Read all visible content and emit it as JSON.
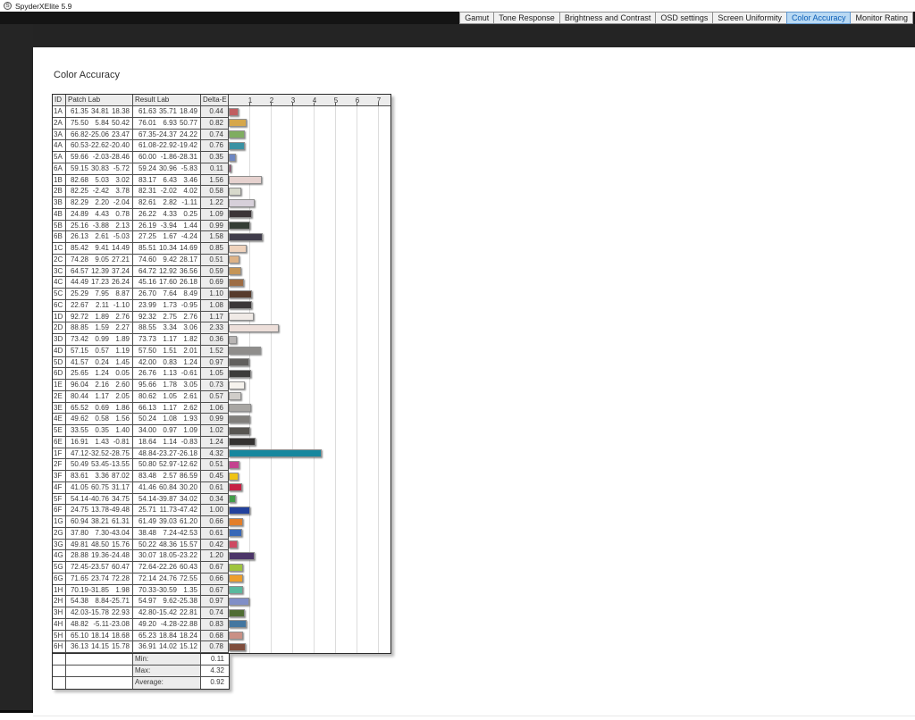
{
  "window": {
    "title": "SpyderXElite 5.9"
  },
  "tabs": {
    "items": [
      {
        "label": "Gamut",
        "active": false
      },
      {
        "label": "Tone Response",
        "active": false
      },
      {
        "label": "Brightness and Contrast",
        "active": false
      },
      {
        "label": "OSD settings",
        "active": false
      },
      {
        "label": "Screen Uniformity",
        "active": false
      },
      {
        "label": "Color Accuracy",
        "active": true
      },
      {
        "label": "Monitor Rating",
        "active": false
      }
    ]
  },
  "page": {
    "title": "Color Accuracy"
  },
  "table": {
    "headers": {
      "id": "ID",
      "patch": "Patch Lab",
      "result": "Result Lab",
      "delta": "Delta-E"
    },
    "rows": [
      {
        "id": "1A",
        "patch": [
          "61.35",
          "34.81",
          "18.38"
        ],
        "result": [
          "61.63",
          "35.71",
          "18.49"
        ],
        "delta": "0.44",
        "color": "#c05d60"
      },
      {
        "id": "2A",
        "patch": [
          "75.50",
          "5.84",
          "50.42"
        ],
        "result": [
          "76.01",
          "6.93",
          "50.77"
        ],
        "delta": "0.82",
        "color": "#d6a74b"
      },
      {
        "id": "3A",
        "patch": [
          "66.82",
          "-25.06",
          "23.47"
        ],
        "result": [
          "67.35",
          "-24.37",
          "24.22"
        ],
        "delta": "0.74",
        "color": "#7fad60"
      },
      {
        "id": "4A",
        "patch": [
          "60.53",
          "-22.62",
          "-20.40"
        ],
        "result": [
          "61.08",
          "-22.92",
          "-19.42"
        ],
        "delta": "0.76",
        "color": "#3a92a3"
      },
      {
        "id": "5A",
        "patch": [
          "59.66",
          "-2.03",
          "-28.46"
        ],
        "result": [
          "60.00",
          "-1.86",
          "-28.31"
        ],
        "delta": "0.35",
        "color": "#6d86c2"
      },
      {
        "id": "6A",
        "patch": [
          "59.15",
          "30.83",
          "-5.72"
        ],
        "result": [
          "59.24",
          "30.96",
          "-5.83"
        ],
        "delta": "0.11",
        "color": "#8d3e66"
      },
      {
        "id": "1B",
        "patch": [
          "82.68",
          "5.03",
          "3.02"
        ],
        "result": [
          "83.17",
          "6.43",
          "3.46"
        ],
        "delta": "1.56",
        "color": "#e6d2cf"
      },
      {
        "id": "2B",
        "patch": [
          "82.25",
          "-2.42",
          "3.78"
        ],
        "result": [
          "82.31",
          "-2.02",
          "4.02"
        ],
        "delta": "0.58",
        "color": "#d7d9cb"
      },
      {
        "id": "3B",
        "patch": [
          "82.29",
          "2.20",
          "-2.04"
        ],
        "result": [
          "82.61",
          "2.82",
          "-1.11"
        ],
        "delta": "1.22",
        "color": "#d7d0da"
      },
      {
        "id": "4B",
        "patch": [
          "24.89",
          "4.43",
          "0.78"
        ],
        "result": [
          "26.22",
          "4.33",
          "0.25"
        ],
        "delta": "1.09",
        "color": "#3b3437"
      },
      {
        "id": "5B",
        "patch": [
          "25.16",
          "-3.88",
          "2.13"
        ],
        "result": [
          "26.19",
          "-3.94",
          "1.44"
        ],
        "delta": "0.99",
        "color": "#353e36"
      },
      {
        "id": "6B",
        "patch": [
          "26.13",
          "2.61",
          "-5.03"
        ],
        "result": [
          "27.25",
          "1.67",
          "-4.24"
        ],
        "delta": "1.58",
        "color": "#403d4b"
      },
      {
        "id": "1C",
        "patch": [
          "85.42",
          "9.41",
          "14.49"
        ],
        "result": [
          "85.51",
          "10.34",
          "14.69"
        ],
        "delta": "0.85",
        "color": "#efd3bd"
      },
      {
        "id": "2C",
        "patch": [
          "74.28",
          "9.05",
          "27.21"
        ],
        "result": [
          "74.60",
          "9.42",
          "28.17"
        ],
        "delta": "0.51",
        "color": "#ddb286"
      },
      {
        "id": "3C",
        "patch": [
          "64.57",
          "12.39",
          "37.24"
        ],
        "result": [
          "64.72",
          "12.92",
          "36.56"
        ],
        "delta": "0.59",
        "color": "#c59556"
      },
      {
        "id": "4C",
        "patch": [
          "44.49",
          "17.23",
          "26.24"
        ],
        "result": [
          "45.16",
          "17.60",
          "26.18"
        ],
        "delta": "0.69",
        "color": "#9d6c43"
      },
      {
        "id": "5C",
        "patch": [
          "25.29",
          "7.95",
          "8.87"
        ],
        "result": [
          "26.70",
          "7.64",
          "8.49"
        ],
        "delta": "1.10",
        "color": "#563b2c"
      },
      {
        "id": "6C",
        "patch": [
          "22.67",
          "2.11",
          "-1.10"
        ],
        "result": [
          "23.99",
          "1.73",
          "-0.95"
        ],
        "delta": "1.08",
        "color": "#3b3738"
      },
      {
        "id": "1D",
        "patch": [
          "92.72",
          "1.89",
          "2.76"
        ],
        "result": [
          "92.32",
          "2.75",
          "2.76"
        ],
        "delta": "1.17",
        "color": "#f0eae6"
      },
      {
        "id": "2D",
        "patch": [
          "88.85",
          "1.59",
          "2.27"
        ],
        "result": [
          "88.55",
          "3.34",
          "3.06"
        ],
        "delta": "2.33",
        "color": "#eddfda"
      },
      {
        "id": "3D",
        "patch": [
          "73.42",
          "0.99",
          "1.89"
        ],
        "result": [
          "73.73",
          "1.17",
          "1.82"
        ],
        "delta": "0.36",
        "color": "#b8b5b4"
      },
      {
        "id": "4D",
        "patch": [
          "57.15",
          "0.57",
          "1.19"
        ],
        "result": [
          "57.50",
          "1.51",
          "2.01"
        ],
        "delta": "1.52",
        "color": "#8f8d8b"
      },
      {
        "id": "5D",
        "patch": [
          "41.57",
          "0.24",
          "1.45"
        ],
        "result": [
          "42.00",
          "0.83",
          "1.24"
        ],
        "delta": "0.97",
        "color": "#615f5d"
      },
      {
        "id": "6D",
        "patch": [
          "25.65",
          "1.24",
          "0.05"
        ],
        "result": [
          "26.76",
          "1.13",
          "-0.61"
        ],
        "delta": "1.05",
        "color": "#3d3c3b"
      },
      {
        "id": "1E",
        "patch": [
          "96.04",
          "2.16",
          "2.60"
        ],
        "result": [
          "95.66",
          "1.78",
          "3.05"
        ],
        "delta": "0.73",
        "color": "#f6f3ee"
      },
      {
        "id": "2E",
        "patch": [
          "80.44",
          "1.17",
          "2.05"
        ],
        "result": [
          "80.62",
          "1.05",
          "2.61"
        ],
        "delta": "0.57",
        "color": "#d0cdc9"
      },
      {
        "id": "3E",
        "patch": [
          "65.52",
          "0.69",
          "1.86"
        ],
        "result": [
          "66.13",
          "1.17",
          "2.62"
        ],
        "delta": "1.06",
        "color": "#a8a6a3"
      },
      {
        "id": "4E",
        "patch": [
          "49.62",
          "0.58",
          "1.56"
        ],
        "result": [
          "50.24",
          "1.08",
          "1.93"
        ],
        "delta": "0.99",
        "color": "#817f7c"
      },
      {
        "id": "5E",
        "patch": [
          "33.55",
          "0.35",
          "1.40"
        ],
        "result": [
          "34.00",
          "0.97",
          "1.09"
        ],
        "delta": "1.02",
        "color": "#575551"
      },
      {
        "id": "6E",
        "patch": [
          "16.91",
          "1.43",
          "-0.81"
        ],
        "result": [
          "18.64",
          "1.14",
          "-0.83"
        ],
        "delta": "1.24",
        "color": "#343231"
      },
      {
        "id": "1F",
        "patch": [
          "47.12",
          "-32.52",
          "-28.75"
        ],
        "result": [
          "48.84",
          "-23.27",
          "-26.18"
        ],
        "delta": "4.32",
        "color": "#16879e"
      },
      {
        "id": "2F",
        "patch": [
          "50.49",
          "53.45",
          "-13.55"
        ],
        "result": [
          "50.80",
          "52.97",
          "-12.62"
        ],
        "delta": "0.51",
        "color": "#c3428f"
      },
      {
        "id": "3F",
        "patch": [
          "83.61",
          "3.36",
          "87.02"
        ],
        "result": [
          "83.48",
          "2.57",
          "86.59"
        ],
        "delta": "0.45",
        "color": "#efc314"
      },
      {
        "id": "4F",
        "patch": [
          "41.05",
          "60.75",
          "31.17"
        ],
        "result": [
          "41.46",
          "60.84",
          "30.20"
        ],
        "delta": "0.61",
        "color": "#c62044"
      },
      {
        "id": "5F",
        "patch": [
          "54.14",
          "-40.76",
          "34.75"
        ],
        "result": [
          "54.14",
          "-39.87",
          "34.02"
        ],
        "delta": "0.34",
        "color": "#429d49"
      },
      {
        "id": "6F",
        "patch": [
          "24.75",
          "13.78",
          "-49.48"
        ],
        "result": [
          "25.71",
          "11.73",
          "-47.42"
        ],
        "delta": "1.00",
        "color": "#22419c"
      },
      {
        "id": "1G",
        "patch": [
          "60.94",
          "38.21",
          "61.31"
        ],
        "result": [
          "61.49",
          "39.03",
          "61.20"
        ],
        "delta": "0.66",
        "color": "#e37e29"
      },
      {
        "id": "2G",
        "patch": [
          "37.80",
          "7.30",
          "-43.04"
        ],
        "result": [
          "38.48",
          "7.24",
          "-42.53"
        ],
        "delta": "0.61",
        "color": "#3868b7"
      },
      {
        "id": "3G",
        "patch": [
          "49.81",
          "48.50",
          "15.76"
        ],
        "result": [
          "50.22",
          "48.36",
          "15.57"
        ],
        "delta": "0.42",
        "color": "#ce4a62"
      },
      {
        "id": "4G",
        "patch": [
          "28.88",
          "19.36",
          "-24.48"
        ],
        "result": [
          "30.07",
          "18.05",
          "-23.22"
        ],
        "delta": "1.20",
        "color": "#4c3568"
      },
      {
        "id": "5G",
        "patch": [
          "72.45",
          "-23.57",
          "60.47"
        ],
        "result": [
          "72.64",
          "-22.26",
          "60.43"
        ],
        "delta": "0.67",
        "color": "#9fc43e"
      },
      {
        "id": "6G",
        "patch": [
          "71.65",
          "23.74",
          "72.28"
        ],
        "result": [
          "72.14",
          "24.76",
          "72.55"
        ],
        "delta": "0.66",
        "color": "#ed9e2a"
      },
      {
        "id": "1H",
        "patch": [
          "70.19",
          "-31.85",
          "1.98"
        ],
        "result": [
          "70.33",
          "-30.59",
          "1.35"
        ],
        "delta": "0.67",
        "color": "#59b99e"
      },
      {
        "id": "2H",
        "patch": [
          "54.38",
          "8.84",
          "-25.71"
        ],
        "result": [
          "54.97",
          "9.62",
          "-25.38"
        ],
        "delta": "0.97",
        "color": "#808ec7"
      },
      {
        "id": "3H",
        "patch": [
          "42.03",
          "-15.78",
          "22.93"
        ],
        "result": [
          "42.80",
          "-15.42",
          "22.81"
        ],
        "delta": "0.74",
        "color": "#4f6d33"
      },
      {
        "id": "4H",
        "patch": [
          "48.82",
          "-5.11",
          "-23.08"
        ],
        "result": [
          "49.20",
          "-4.28",
          "-22.88"
        ],
        "delta": "0.83",
        "color": "#4376a0"
      },
      {
        "id": "5H",
        "patch": [
          "65.10",
          "18.14",
          "18.68"
        ],
        "result": [
          "65.23",
          "18.84",
          "18.24"
        ],
        "delta": "0.68",
        "color": "#ca9085"
      },
      {
        "id": "6H",
        "patch": [
          "36.13",
          "14.15",
          "15.78"
        ],
        "result": [
          "36.91",
          "14.02",
          "15.12"
        ],
        "delta": "0.78",
        "color": "#7f4d3c"
      }
    ],
    "summary": [
      {
        "label": "Min:",
        "value": "0.11"
      },
      {
        "label": "Max:",
        "value": "4.32"
      },
      {
        "label": "Average:",
        "value": "0.92"
      }
    ]
  },
  "chart_data": {
    "type": "bar",
    "title": "Color Accuracy Delta-E per patch",
    "orientation": "horizontal",
    "categories": [
      "1A",
      "2A",
      "3A",
      "4A",
      "5A",
      "6A",
      "1B",
      "2B",
      "3B",
      "4B",
      "5B",
      "6B",
      "1C",
      "2C",
      "3C",
      "4C",
      "5C",
      "6C",
      "1D",
      "2D",
      "3D",
      "4D",
      "5D",
      "6D",
      "1E",
      "2E",
      "3E",
      "4E",
      "5E",
      "6E",
      "1F",
      "2F",
      "3F",
      "4F",
      "5F",
      "6F",
      "1G",
      "2G",
      "3G",
      "4G",
      "5G",
      "6G",
      "1H",
      "2H",
      "3H",
      "4H",
      "5H",
      "6H"
    ],
    "values": [
      0.44,
      0.82,
      0.74,
      0.76,
      0.35,
      0.11,
      1.56,
      0.58,
      1.22,
      1.09,
      0.99,
      1.58,
      0.85,
      0.51,
      0.59,
      0.69,
      1.1,
      1.08,
      1.17,
      2.33,
      0.36,
      1.52,
      0.97,
      1.05,
      0.73,
      0.57,
      1.06,
      0.99,
      1.02,
      1.24,
      4.32,
      0.51,
      0.45,
      0.61,
      0.34,
      1.0,
      0.66,
      0.61,
      0.42,
      1.2,
      0.67,
      0.66,
      0.67,
      0.97,
      0.74,
      0.83,
      0.68,
      0.78
    ],
    "xlabel": "Delta-E",
    "xlim": [
      0,
      7.55
    ],
    "ticks": [
      1,
      2,
      3,
      4,
      5,
      6,
      7
    ],
    "grid": true,
    "summary": {
      "min": 0.11,
      "max": 4.32,
      "average": 0.92
    }
  }
}
